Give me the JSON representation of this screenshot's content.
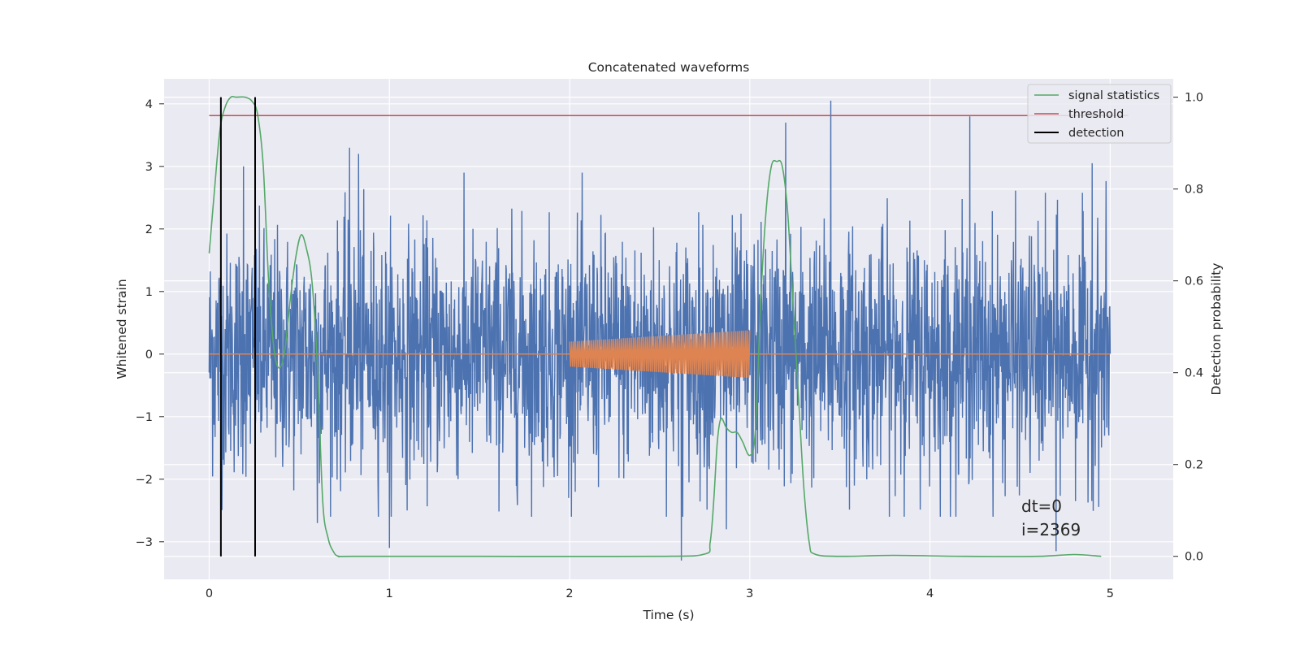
{
  "chart_data": {
    "type": "line",
    "title": "Concatenated waveforms",
    "xlabel": "Time (s)",
    "ylabel": "Whitened strain",
    "ylabel_right": "Detection probability",
    "xlim": [
      -0.25,
      5.35
    ],
    "ylim": [
      -3.6,
      4.4
    ],
    "ylim_right": [
      -0.05,
      1.04
    ],
    "x_ticks": [
      0,
      1,
      2,
      3,
      4,
      5
    ],
    "y_ticks": [
      -3,
      -2,
      -1,
      0,
      1,
      2,
      3,
      4
    ],
    "y_ticks_right": [
      0.0,
      0.2,
      0.4,
      0.6,
      0.8,
      1.0
    ],
    "x_tick_labels": [
      "0",
      "1",
      "2",
      "3",
      "4",
      "5"
    ],
    "y_tick_labels": [
      "−3",
      "−2",
      "−1",
      "0",
      "1",
      "2",
      "3",
      "4"
    ],
    "y_tick_labels_right": [
      "0.0",
      "0.2",
      "0.4",
      "0.6",
      "0.8",
      "1.0"
    ],
    "grid": true,
    "legend_position": "top-right",
    "colors": {
      "strain": "#4c72b0",
      "injection": "#dd8452",
      "signal_statistics": "#55a868",
      "threshold": "#c44e52",
      "detection": "#000000",
      "background": "#eaeaf2",
      "grid": "#ffffff"
    },
    "series": [
      {
        "name": "",
        "axis": "left",
        "description_kind": "whitened strain noise",
        "x_range": [
          0,
          5
        ],
        "spikes": [
          {
            "x": 0.78,
            "y": 3.3
          },
          {
            "x": 0.83,
            "y": 3.2
          },
          {
            "x": 1.0,
            "y": -3.1
          },
          {
            "x": 2.62,
            "y": -3.3
          },
          {
            "x": 2.87,
            "y": -2.8
          },
          {
            "x": 3.2,
            "y": 3.7
          },
          {
            "x": 3.45,
            "y": 4.05
          },
          {
            "x": 4.22,
            "y": 3.8
          },
          {
            "x": 4.7,
            "y": -3.15
          },
          {
            "x": 4.9,
            "y": 3.05
          },
          {
            "x": 0.19,
            "y": 3.0
          },
          {
            "x": 0.6,
            "y": -2.7
          }
        ]
      },
      {
        "name": "",
        "axis": "left",
        "description_kind": "injected chirp",
        "x_range": [
          2.0,
          3.0
        ],
        "amplitude_start": 0.2,
        "amplitude_end": 0.38
      },
      {
        "name": "signal statistics",
        "axis": "right",
        "x": [
          0,
          0.03,
          0.06,
          0.09,
          0.12,
          0.15,
          0.2,
          0.24,
          0.27,
          0.3,
          0.33,
          0.36,
          0.39,
          0.42,
          0.45,
          0.48,
          0.51,
          0.54,
          0.57,
          0.6,
          0.63,
          0.66,
          0.69,
          0.72,
          0.8,
          1.5,
          2.5,
          2.75,
          2.78,
          2.8,
          2.82,
          2.84,
          2.87,
          2.9,
          2.93,
          2.96,
          3.0,
          3.03,
          3.06,
          3.09,
          3.12,
          3.15,
          3.18,
          3.21,
          3.24,
          3.27,
          3.3,
          3.33,
          3.36,
          3.5,
          3.8,
          4.2,
          4.6,
          4.8,
          4.95
        ],
        "y": [
          0.66,
          0.8,
          0.93,
          0.98,
          1.0,
          1.0,
          1.0,
          0.99,
          0.96,
          0.85,
          0.6,
          0.45,
          0.41,
          0.45,
          0.56,
          0.65,
          0.7,
          0.67,
          0.6,
          0.42,
          0.12,
          0.04,
          0.01,
          0.0,
          0.0,
          0.0,
          0.0,
          0.005,
          0.03,
          0.12,
          0.25,
          0.3,
          0.28,
          0.27,
          0.27,
          0.25,
          0.22,
          0.27,
          0.55,
          0.75,
          0.85,
          0.86,
          0.85,
          0.75,
          0.55,
          0.35,
          0.15,
          0.03,
          0.005,
          0.0,
          0.002,
          0.0,
          0.0,
          0.004,
          0.0
        ]
      },
      {
        "name": "threshold",
        "axis": "right",
        "x": [
          0,
          5.1
        ],
        "y": [
          0.96,
          0.96
        ]
      },
      {
        "name": "detection",
        "axis": "right",
        "vlines": [
          0.065,
          0.255
        ],
        "y_range": [
          0.0,
          1.0
        ]
      }
    ],
    "annotations": [
      "dt=0",
      "i=2369"
    ]
  }
}
